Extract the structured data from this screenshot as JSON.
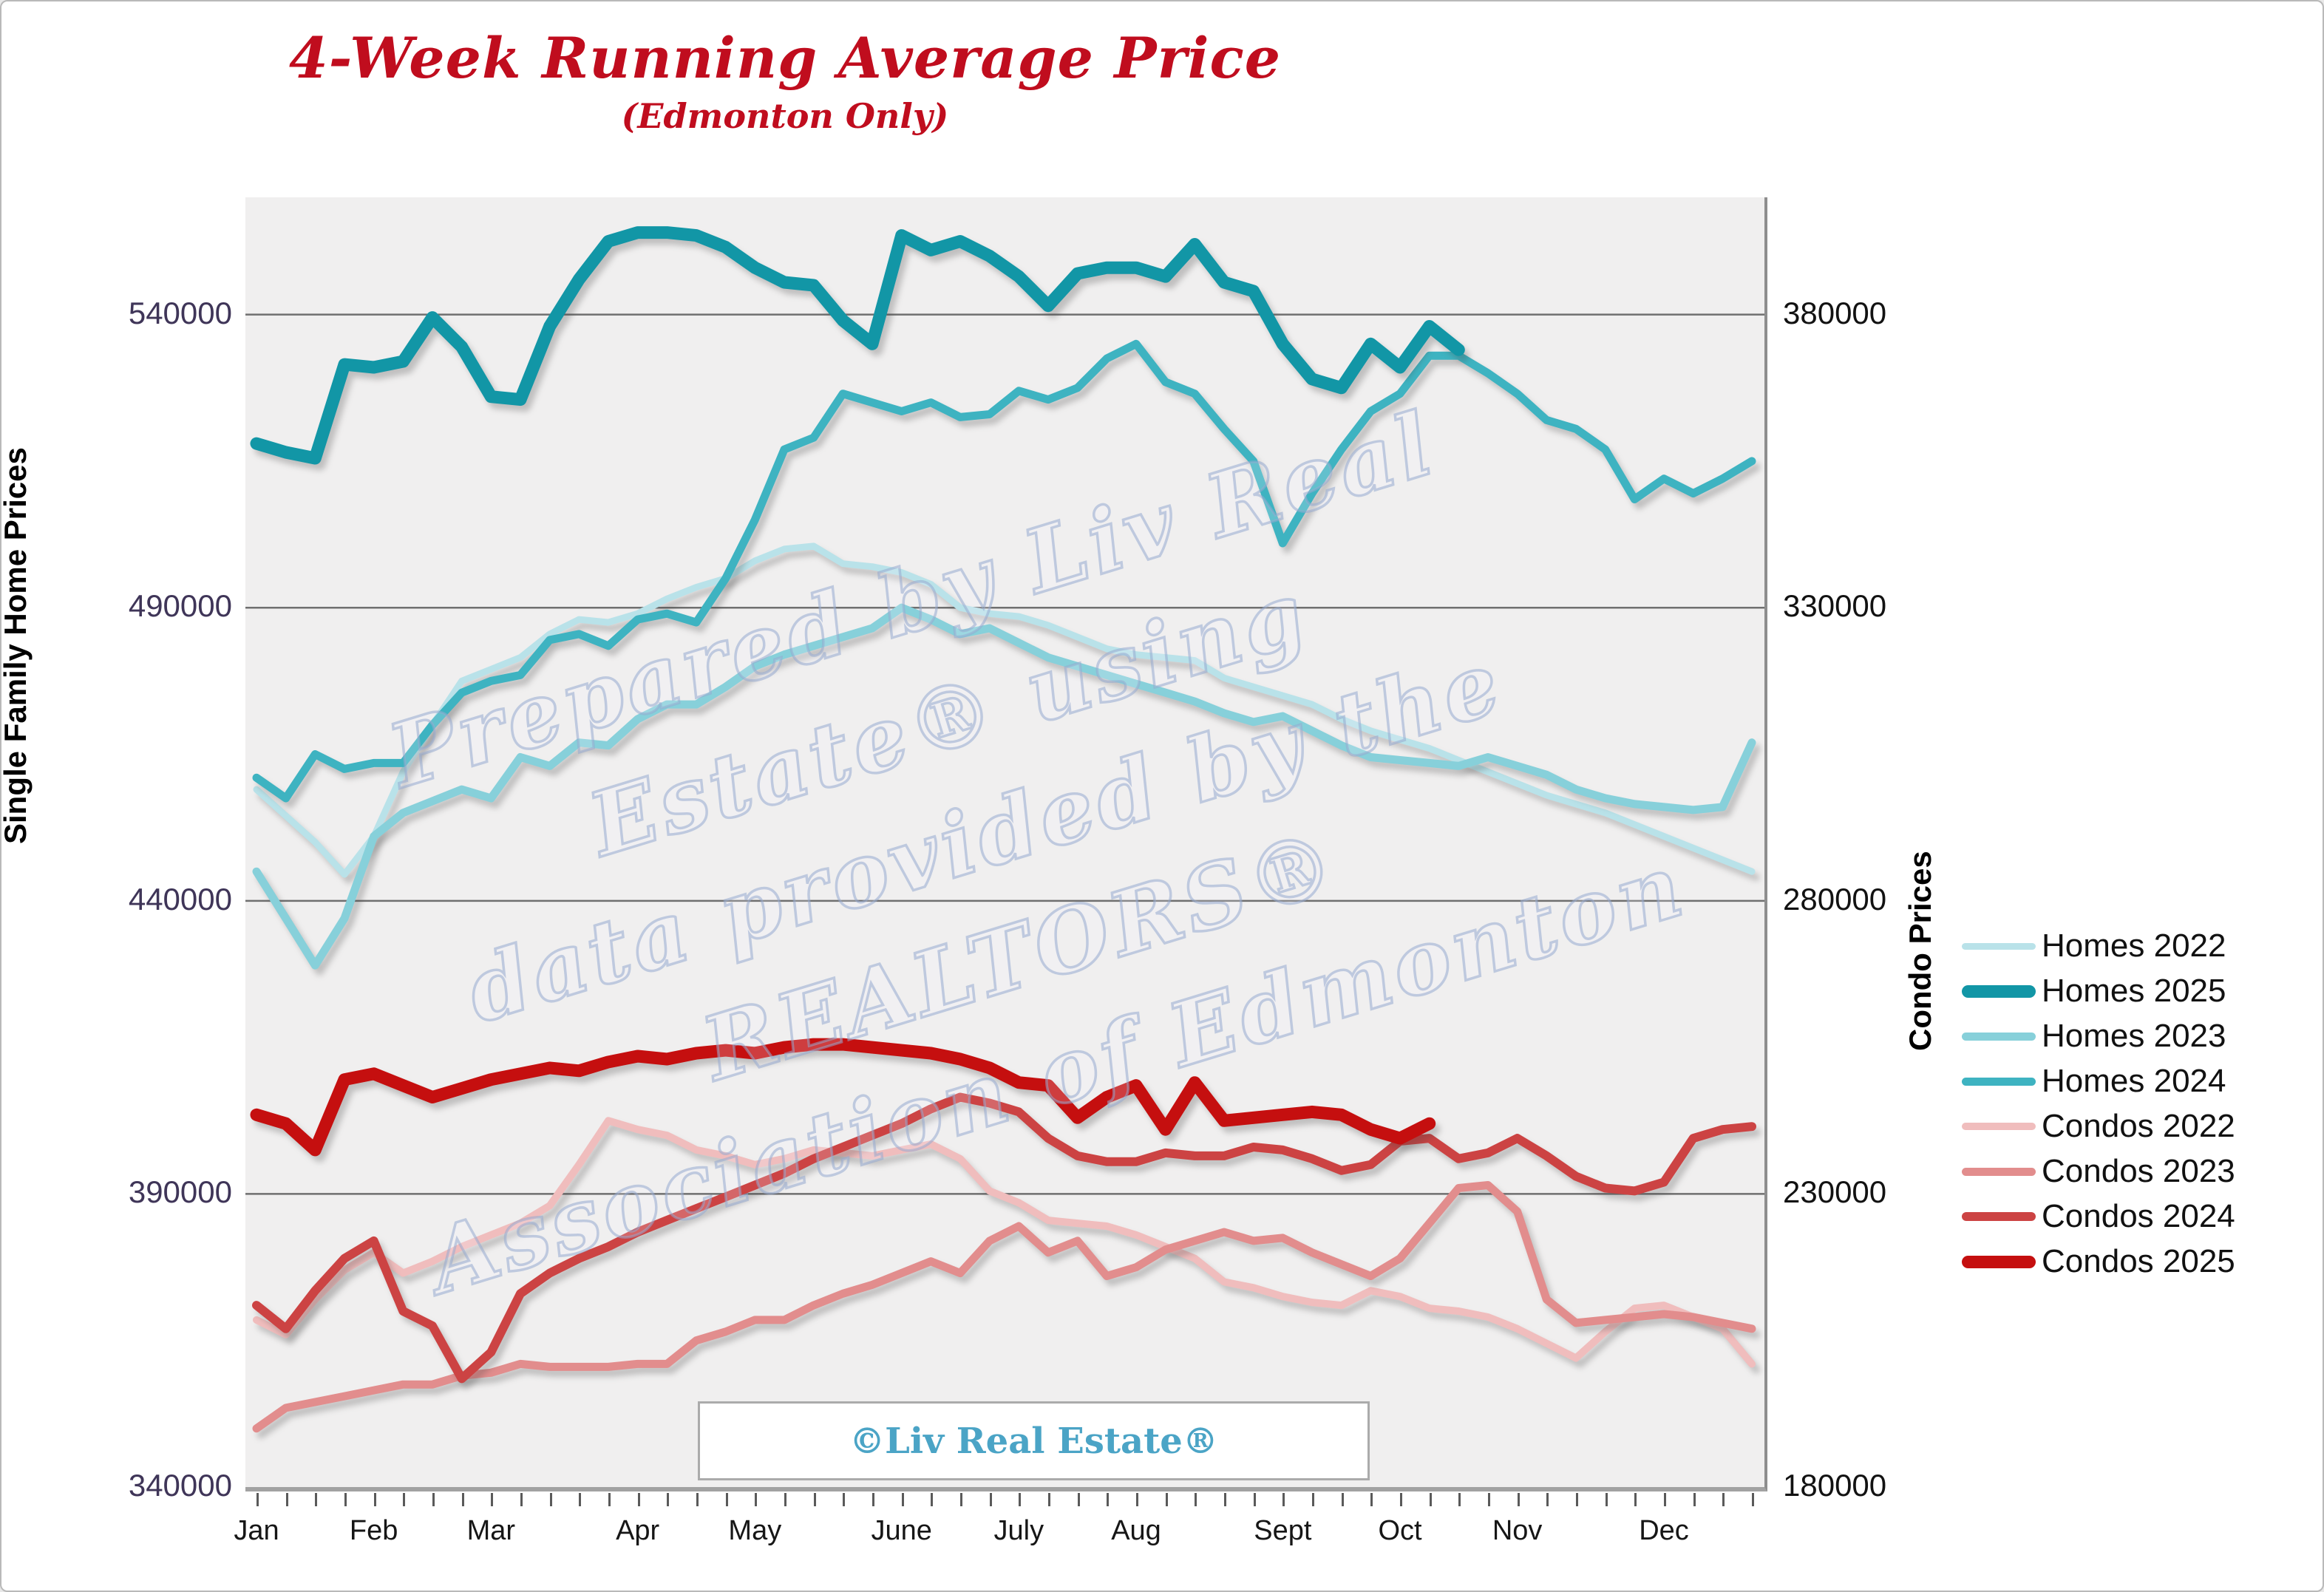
{
  "title": "4-Week Running Average Price",
  "subtitle": "(Edmonton Only)",
  "title_color": "#c00d1e",
  "copyright_text": "©Liv Real Estate®",
  "watermark": {
    "lines": [
      "Prepared by Liv Real",
      "Estate® using",
      "data provided by the",
      "REALTORS®",
      "Association of Edmonton"
    ]
  },
  "legend": [
    {
      "label": "Homes 2022",
      "color": "#b9e2e9",
      "thickness": 9
    },
    {
      "label": "Homes 2025",
      "color": "#1296a6",
      "thickness": 17
    },
    {
      "label": "Homes 2023",
      "color": "#87d0da",
      "thickness": 11
    },
    {
      "label": "Homes 2024",
      "color": "#3eb3c1",
      "thickness": 11
    },
    {
      "label": "Condos 2022",
      "color": "#f0bdbd",
      "thickness": 10
    },
    {
      "label": "Condos 2023",
      "color": "#e28d8d",
      "thickness": 11
    },
    {
      "label": "Condos 2024",
      "color": "#cc4343",
      "thickness": 12
    },
    {
      "label": "Condos 2025",
      "color": "#c50f0f",
      "thickness": 17
    }
  ],
  "chart_data": {
    "type": "line",
    "x_unit": "week",
    "weeks_per_year": 52,
    "left_axis": {
      "title": "Single Family Home Prices",
      "range": [
        340000,
        560000
      ],
      "tick_labels": [
        "540000",
        "490000",
        "440000",
        "390000",
        "340000"
      ],
      "tick_values": [
        540000,
        490000,
        440000,
        390000,
        340000
      ]
    },
    "right_axis": {
      "title": "Condo Prices",
      "range": [
        180000,
        400000
      ],
      "tick_labels": [
        "380000",
        "330000",
        "280000",
        "230000",
        "180000"
      ],
      "tick_values": [
        380000,
        330000,
        280000,
        230000,
        180000
      ]
    },
    "months": [
      {
        "label": "Jan",
        "week": 1
      },
      {
        "label": "Feb",
        "week": 5
      },
      {
        "label": "Mar",
        "week": 9
      },
      {
        "label": "Apr",
        "week": 14
      },
      {
        "label": "May",
        "week": 18
      },
      {
        "label": "June",
        "week": 23
      },
      {
        "label": "July",
        "week": 27
      },
      {
        "label": "Aug",
        "week": 31
      },
      {
        "label": "Sept",
        "week": 36
      },
      {
        "label": "Oct",
        "week": 40
      },
      {
        "label": "Nov",
        "week": 44
      },
      {
        "label": "Dec",
        "week": 49
      }
    ],
    "grid": "horizontal",
    "legend_position": "right",
    "series": [
      {
        "name": "Homes 2022",
        "axis": "left",
        "color": "#b9e2e9",
        "width": 9,
        "values": [
          459000,
          454500,
          450000,
          444500,
          451000,
          462000,
          470000,
          477500,
          479500,
          481500,
          485500,
          488000,
          487500,
          489000,
          491500,
          493500,
          495000,
          498000,
          500000,
          500500,
          497500,
          497000,
          496000,
          494000,
          490000,
          489000,
          488500,
          487000,
          485000,
          483000,
          482000,
          481500,
          481000,
          478000,
          476500,
          475000,
          473500,
          471000,
          469000,
          467500,
          466000,
          464000,
          462000,
          460000,
          458000,
          456500,
          455000,
          453000,
          451000,
          449000,
          447000,
          445000
        ]
      },
      {
        "name": "Homes 2023",
        "axis": "left",
        "color": "#87d0da",
        "width": 11,
        "values": [
          445000,
          437000,
          429000,
          437000,
          451000,
          455000,
          457000,
          459000,
          457500,
          464500,
          463000,
          467000,
          466500,
          471000,
          473500,
          473500,
          476500,
          480000,
          482000,
          483500,
          485000,
          486500,
          490000,
          488000,
          485500,
          486500,
          484000,
          481500,
          480000,
          478500,
          477000,
          475500,
          474000,
          472000,
          470500,
          471500,
          469000,
          466500,
          464500,
          464000,
          463500,
          463000,
          464500,
          463000,
          461500,
          459000,
          457500,
          456500,
          456000,
          455500,
          456000,
          467000
        ]
      },
      {
        "name": "Homes 2024",
        "axis": "left",
        "color": "#3eb3c1",
        "width": 11,
        "values": [
          461000,
          457500,
          465000,
          462500,
          463500,
          463500,
          470000,
          475500,
          477500,
          478500,
          484500,
          485500,
          483500,
          488000,
          489000,
          487500,
          495000,
          505000,
          517000,
          519000,
          526500,
          525000,
          523500,
          525000,
          522500,
          523000,
          527000,
          525500,
          527500,
          532500,
          535000,
          528500,
          526500,
          520500,
          515000,
          501000,
          509500,
          517000,
          523500,
          526500,
          533000,
          533000,
          530000,
          526500,
          522000,
          520500,
          517000,
          508500,
          512000,
          509500,
          512000,
          515000
        ]
      },
      {
        "name": "Condos 2022",
        "axis": "right",
        "color": "#f0bdbd",
        "width": 10,
        "values": [
          208500,
          206000,
          212000,
          217000,
          220000,
          216500,
          218500,
          221000,
          223000,
          225000,
          228000,
          235000,
          242500,
          241000,
          240000,
          237500,
          236500,
          235000,
          236000,
          237500,
          237000,
          236500,
          237500,
          238500,
          236000,
          230500,
          228500,
          225500,
          225000,
          224500,
          223000,
          221000,
          219000,
          215000,
          214000,
          212500,
          211500,
          211000,
          213500,
          212500,
          210500,
          210000,
          209000,
          207000,
          204500,
          202000,
          206500,
          210500,
          211000,
          209000,
          207000,
          201000
        ]
      },
      {
        "name": "Condos 2023",
        "axis": "right",
        "color": "#e28d8d",
        "width": 11,
        "values": [
          190000,
          193500,
          194500,
          195500,
          196500,
          197500,
          197500,
          199000,
          199500,
          201000,
          200500,
          200500,
          200500,
          201000,
          201000,
          205000,
          206500,
          208500,
          208500,
          211000,
          213000,
          214500,
          216500,
          218500,
          216500,
          222000,
          224500,
          220000,
          222000,
          216000,
          217500,
          220500,
          222000,
          223500,
          222000,
          222500,
          220000,
          218000,
          216000,
          219000,
          225000,
          231000,
          231500,
          227000,
          212000,
          208000,
          208500,
          209000,
          209500,
          209000,
          208000,
          207000
        ]
      },
      {
        "name": "Condos 2024",
        "axis": "right",
        "color": "#cc4343",
        "width": 12,
        "values": [
          211000,
          207000,
          213500,
          219000,
          222000,
          210000,
          207500,
          198500,
          203000,
          213000,
          216500,
          219000,
          221000,
          223500,
          225500,
          227500,
          229500,
          231500,
          233500,
          236000,
          238000,
          240000,
          242000,
          244500,
          246500,
          245500,
          244000,
          239500,
          236500,
          235500,
          235500,
          237000,
          236500,
          236500,
          238000,
          237500,
          236000,
          234000,
          235000,
          239000,
          239500,
          236000,
          237000,
          239500,
          236500,
          233000,
          231000,
          230500,
          232000,
          239500,
          241000,
          241500
        ]
      },
      {
        "name": "Homes 2025",
        "axis": "left",
        "color": "#1296a6",
        "width": 17,
        "values": [
          518000,
          516500,
          515500,
          531500,
          531000,
          532000,
          539500,
          534500,
          526000,
          525500,
          538000,
          546000,
          552500,
          554000,
          554000,
          553500,
          551500,
          548000,
          545500,
          545000,
          539000,
          535000,
          553500,
          551000,
          552500,
          550000,
          546500,
          541500,
          547000,
          548000,
          548000,
          546500,
          552000,
          545500,
          544000,
          535000,
          529000,
          527500,
          535000,
          531000,
          538000,
          534000
        ]
      },
      {
        "name": "Condos 2025",
        "axis": "right",
        "color": "#c50f0f",
        "width": 17,
        "values": [
          243500,
          242000,
          237500,
          249500,
          250500,
          248500,
          246500,
          248000,
          249500,
          250500,
          251500,
          251000,
          252500,
          253500,
          253000,
          254000,
          254500,
          254000,
          255000,
          255500,
          255500,
          255000,
          254500,
          254000,
          253000,
          251500,
          249000,
          248500,
          243000,
          246500,
          248500,
          241000,
          249000,
          242500,
          243000,
          243500,
          244000,
          243500,
          241000,
          239500,
          242000
        ]
      }
    ]
  }
}
